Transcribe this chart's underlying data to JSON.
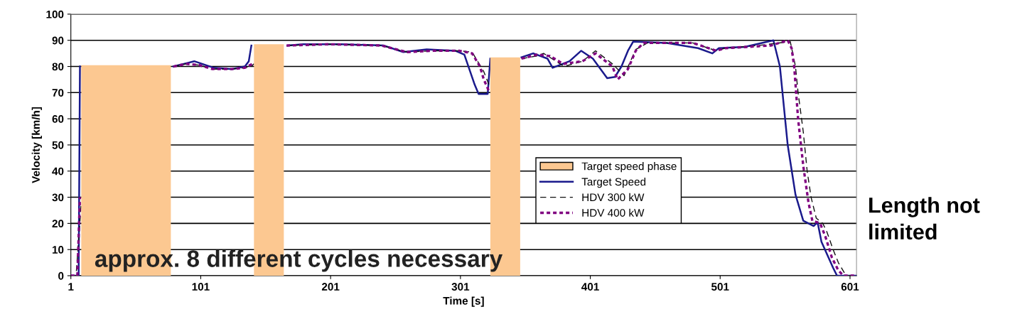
{
  "chart_data": {
    "type": "line",
    "xlabel": "Time [s]",
    "ylabel": "Velocity [km/h]",
    "xlim": [
      1,
      606
    ],
    "xticks": [
      1,
      101,
      201,
      301,
      401,
      501,
      601
    ],
    "ylim": [
      0,
      100
    ],
    "yticks": [
      0,
      10,
      20,
      30,
      40,
      50,
      60,
      70,
      80,
      90,
      100
    ],
    "grid": "y",
    "legend": "lower right",
    "annotations": [
      "approx. 8 different cycles necessary",
      "Length not limited"
    ],
    "series": [
      {
        "name": "Target speed phase",
        "type": "area",
        "color": "#fcc891",
        "x": [
          9,
          9,
          78,
          78,
          110,
          142,
          142,
          165,
          165,
          250,
          324,
          324,
          347,
          347
        ],
        "values": [
          0,
          80.5,
          80.5,
          0,
          null,
          0,
          88.5,
          88.5,
          0,
          null,
          0,
          83.5,
          83.5,
          0
        ]
      },
      {
        "name": "Target Speed",
        "line_style": "solid",
        "color": "#1a1a8c",
        "x": [
          1,
          7,
          8,
          9,
          80,
          88,
          96,
          111,
          125,
          135,
          138,
          140,
          142,
          165,
          168,
          180,
          209,
          242,
          257,
          275,
          297,
          304,
          312,
          315,
          322,
          324,
          347,
          348,
          357,
          368,
          372,
          385,
          394,
          403,
          414,
          420,
          425,
          430,
          434,
          460,
          484,
          495,
          500,
          520,
          542,
          547,
          553,
          559,
          565,
          573,
          576,
          579,
          588,
          591,
          606
        ],
        "values": [
          0,
          0,
          80,
          null,
          80,
          81,
          82,
          79.5,
          79,
          80,
          82,
          88,
          null,
          null,
          88,
          88.5,
          88.5,
          88,
          85.5,
          86.5,
          86,
          84.5,
          73,
          69.5,
          69.5,
          83,
          null,
          83.5,
          85,
          83,
          79.5,
          82,
          86,
          83,
          75.5,
          76,
          80,
          86,
          89.5,
          89,
          87,
          85,
          87,
          87.5,
          90,
          80,
          50,
          31,
          21,
          19,
          20.5,
          13,
          3,
          0,
          0
        ]
      },
      {
        "name": "HDV 300 kW",
        "line_style": "dashed",
        "color": "#111111",
        "x": [
          1,
          5,
          9,
          40,
          80,
          90,
          100,
          110,
          125,
          135,
          140,
          142,
          150,
          167,
          200,
          240,
          260,
          280,
          300,
          310,
          319,
          323,
          330,
          348,
          360,
          365,
          381,
          395,
          405,
          418,
          427,
          436,
          445,
          480,
          498,
          505,
          530,
          555,
          559,
          561,
          565,
          568,
          571,
          575,
          580,
          583,
          588,
          592,
          598,
          606
        ],
        "values": [
          0,
          0,
          28,
          null,
          80,
          81,
          80.5,
          79,
          79,
          79.5,
          80,
          81,
          null,
          88,
          88.5,
          88,
          85.5,
          86,
          86,
          85.5,
          78,
          73,
          null,
          83,
          84,
          85,
          80,
          82,
          86,
          81,
          76.5,
          86.5,
          89,
          89,
          86,
          87,
          88,
          89.5,
          80,
          70,
          55,
          40,
          30,
          22,
          20,
          17,
          10,
          5,
          0,
          0
        ]
      },
      {
        "name": "HDV 400 kW",
        "line_style": "dotted",
        "color": "#800080",
        "x": [
          1,
          6,
          8,
          40,
          80,
          90,
          100,
          110,
          125,
          135,
          141,
          150,
          167,
          200,
          240,
          260,
          280,
          300,
          310,
          316,
          319,
          323,
          330,
          348,
          360,
          370,
          380,
          395,
          405,
          418,
          422,
          430,
          436,
          442,
          480,
          498,
          505,
          540,
          553,
          556,
          558,
          561,
          565,
          569,
          572,
          578,
          582,
          587,
          592,
          596,
          606
        ],
        "values": [
          0,
          0,
          30,
          null,
          80,
          81,
          80.5,
          79,
          79,
          79.5,
          81,
          null,
          88,
          88.5,
          88,
          85.5,
          86,
          86,
          85,
          80,
          75,
          70.5,
          null,
          83,
          84.5,
          84,
          81,
          82,
          85,
          80,
          75,
          79,
          86,
          89,
          89,
          86,
          87,
          88,
          90,
          87,
          80,
          60,
          42,
          28,
          21,
          20,
          15,
          7,
          2,
          0,
          0
        ]
      }
    ]
  }
}
